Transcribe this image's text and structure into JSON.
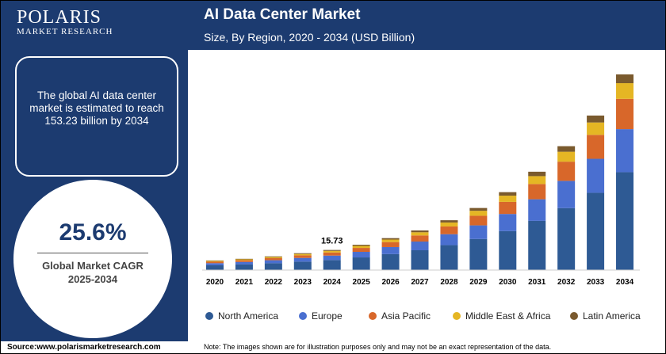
{
  "logo": {
    "name": "POLARIS",
    "tagline": "MARKET RESEARCH"
  },
  "summary": "The global AI data center market is estimated to reach 153.23 billion by 2034",
  "cagr": {
    "value": "25.6%",
    "label": "Global Market CAGR",
    "period": "2025-2034"
  },
  "footer": {
    "source": "Source:www.polarismarketresearch.com",
    "note": "Note: The images shown are for illustration purposes only and may not be an exact representation of the data."
  },
  "chart_data": {
    "type": "stacked_bar",
    "title": "AI Data Center Market",
    "subtitle": "Size, By Region, 2020 - 2034 (USD Billion)",
    "categories": [
      "2020",
      "2021",
      "2022",
      "2023",
      "2024",
      "2025",
      "2026",
      "2027",
      "2028",
      "2029",
      "2030",
      "2031",
      "2032",
      "2033",
      "2034"
    ],
    "series": [
      {
        "name": "North America",
        "color": "#2e5a94",
        "values": [
          3.75,
          4.4,
          5.35,
          6.6,
          7.87,
          9.9,
          12.5,
          15.5,
          19.5,
          24.3,
          30.5,
          38.5,
          48.5,
          60.5,
          76.62
        ]
      },
      {
        "name": "Europe",
        "color": "#4a6fd0",
        "values": [
          1.65,
          1.94,
          2.35,
          2.9,
          3.46,
          4.36,
          5.5,
          6.82,
          8.58,
          10.69,
          13.42,
          16.94,
          21.34,
          26.62,
          33.71
        ]
      },
      {
        "name": "Asia Pacific",
        "color": "#d8672a",
        "values": [
          1.16,
          1.36,
          1.66,
          2.05,
          2.44,
          3.07,
          3.88,
          4.8,
          6.05,
          7.53,
          9.46,
          11.94,
          15.04,
          18.76,
          23.75
        ]
      },
      {
        "name": "Middle East & Africa",
        "color": "#e5b624",
        "values": [
          0.6,
          0.7,
          0.86,
          1.06,
          1.26,
          1.58,
          2.0,
          2.48,
          3.12,
          3.89,
          4.88,
          6.16,
          7.76,
          9.68,
          12.26
        ]
      },
      {
        "name": "Latin America",
        "color": "#7a5a2e",
        "values": [
          0.34,
          0.4,
          0.48,
          0.59,
          0.7,
          0.89,
          1.12,
          1.4,
          1.75,
          2.19,
          2.74,
          3.46,
          4.36,
          5.44,
          6.89
        ]
      }
    ],
    "callout": {
      "category": "2024",
      "label": "15.73"
    },
    "ylim": [
      0,
      160
    ]
  }
}
